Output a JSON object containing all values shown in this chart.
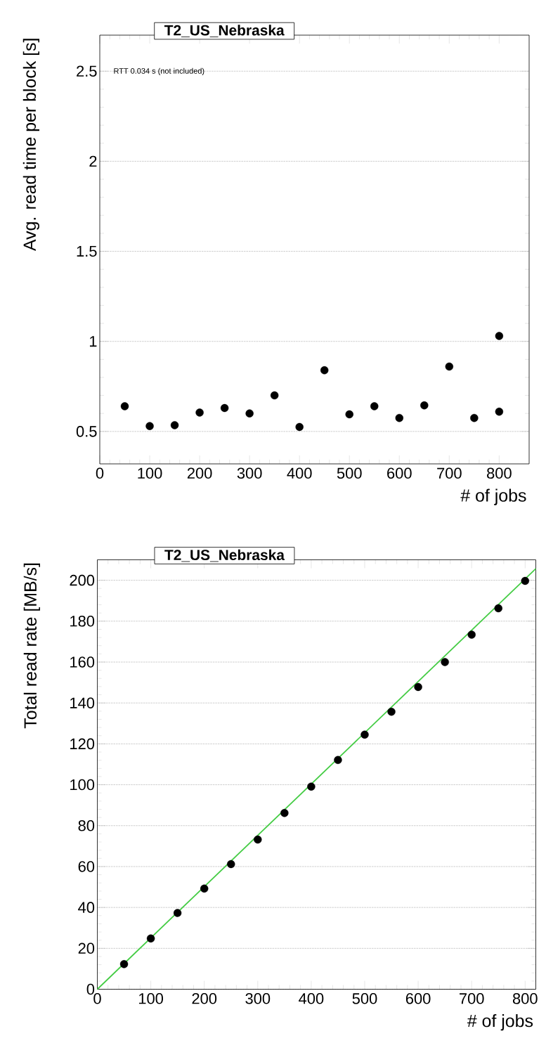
{
  "chart_data": [
    {
      "type": "scatter",
      "title": "T2_US_Nebraska",
      "xlabel": "# of jobs",
      "ylabel": "Avg. read time per block [s]",
      "annotations": [
        "RTT 0.034 s (not included)"
      ],
      "x": [
        50,
        100,
        150,
        200,
        250,
        300,
        350,
        400,
        450,
        500,
        550,
        600,
        650,
        700,
        750,
        800,
        800
      ],
      "series": [
        {
          "color": "#000000",
          "values": [
            0.64,
            0.53,
            0.535,
            0.605,
            0.63,
            0.6,
            0.7,
            0.525,
            0.84,
            0.595,
            0.64,
            0.575,
            0.645,
            0.86,
            0.575,
            0.61,
            1.03
          ]
        }
      ],
      "xlim": [
        0,
        860
      ],
      "xticks": [
        0,
        100,
        200,
        300,
        400,
        500,
        600,
        700,
        800
      ],
      "ylim": [
        0.32,
        2.7
      ],
      "yticks": [
        0.5,
        1,
        1.5,
        2,
        2.5
      ],
      "grid": "y",
      "marker": "circle"
    },
    {
      "type": "scatter",
      "title": "T2_US_Nebraska",
      "xlabel": "# of jobs",
      "ylabel": "Total read rate [MB/s]",
      "x": [
        50,
        100,
        150,
        200,
        250,
        300,
        350,
        400,
        450,
        500,
        550,
        600,
        650,
        700,
        750,
        800
      ],
      "series": [
        {
          "color": "#000000",
          "values": [
            12.3,
            24.8,
            37.3,
            49.2,
            61.2,
            73.2,
            86.2,
            99.1,
            112.1,
            124.5,
            135.7,
            147.8,
            160.0,
            173.4,
            186.3,
            199.7
          ]
        },
        {
          "type": "line",
          "color": "#44cc44",
          "marker": "none",
          "x": [
            0,
            820
          ],
          "values": [
            0,
            205.7
          ]
        }
      ],
      "xlim": [
        0,
        820
      ],
      "xticks": [
        0,
        100,
        200,
        300,
        400,
        500,
        600,
        700,
        800
      ],
      "ylim": [
        0,
        210
      ],
      "yticks": [
        0,
        20,
        40,
        60,
        80,
        100,
        120,
        140,
        160,
        180,
        200
      ],
      "grid": "y",
      "marker": "circle"
    }
  ]
}
